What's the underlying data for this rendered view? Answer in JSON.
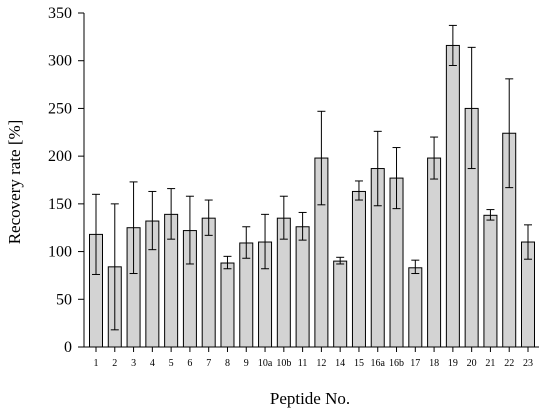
{
  "chart_data": {
    "type": "bar",
    "title": "",
    "xlabel": "Peptide No.",
    "ylabel": "Recovery rate [%]",
    "ylim": [
      0,
      350
    ],
    "yticks": [
      0,
      50,
      100,
      150,
      200,
      250,
      300,
      350
    ],
    "grid": false,
    "bar_color": "#d3d3d3",
    "categories": [
      "1",
      "2",
      "3",
      "4",
      "5",
      "6",
      "7",
      "8",
      "9",
      "10a",
      "10b",
      "11",
      "12",
      "14",
      "15",
      "16a",
      "16b",
      "17",
      "18",
      "19",
      "20",
      "21",
      "22",
      "23"
    ],
    "series": [
      {
        "values": [
          118,
          84,
          125,
          132,
          139,
          122,
          135,
          88,
          109,
          110,
          135,
          126,
          198,
          90,
          163,
          187,
          177,
          83,
          198,
          316,
          250,
          138,
          224,
          110
        ],
        "error_low": [
          76,
          18,
          77,
          102,
          113,
          87,
          117,
          82,
          93,
          82,
          113,
          112,
          149,
          87,
          154,
          148,
          145,
          77,
          176,
          295,
          187,
          133,
          167,
          92
        ],
        "error_high": [
          160,
          150,
          173,
          163,
          166,
          158,
          154,
          95,
          126,
          139,
          158,
          141,
          247,
          94,
          174,
          226,
          209,
          91,
          220,
          337,
          314,
          144,
          281,
          128
        ]
      }
    ]
  }
}
